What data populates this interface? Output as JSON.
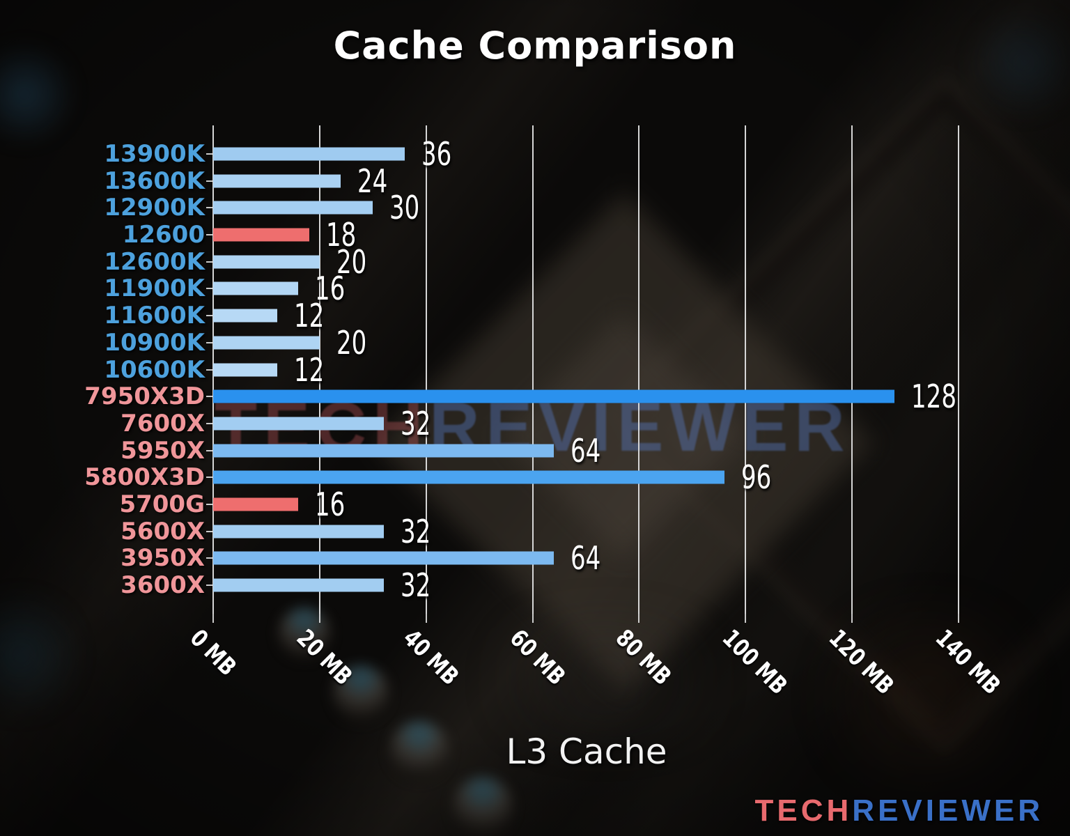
{
  "title": "Cache Comparison",
  "xlabel": "L3 Cache",
  "watermark_center": {
    "tech": "TECH",
    "reviewer": "REVIEWER",
    "tech_color": "rgba(205,95,100,0.34)",
    "reviewer_color": "rgba(90,128,210,0.38)"
  },
  "logo": {
    "tech": "TECH",
    "reviewer": "REVIEWER",
    "tech_color": "#e86a6e",
    "reviewer_color": "#3a70c8"
  },
  "chart_data": {
    "type": "bar",
    "orientation": "horizontal",
    "title": "Cache Comparison",
    "xlabel": "L3 Cache",
    "unit": "MB",
    "xlim": [
      0,
      140
    ],
    "grid": true,
    "grid_color": "#d6d6d6",
    "tick_values": [
      0,
      20,
      40,
      60,
      80,
      100,
      120,
      140
    ],
    "tick_labels": [
      "0 MB",
      "20 MB",
      "40 MB",
      "60 MB",
      "80 MB",
      "100 MB",
      "120 MB",
      "140 MB"
    ],
    "legend": null,
    "rows": [
      {
        "label": "13900K",
        "value": 36,
        "bar_color": "#9fcbf0",
        "label_color": "#4da1dd",
        "brand": "intel"
      },
      {
        "label": "13600K",
        "value": 24,
        "bar_color": "#aad1f2",
        "label_color": "#4da1dd",
        "brand": "intel"
      },
      {
        "label": "12900K",
        "value": 30,
        "bar_color": "#a4cef2",
        "label_color": "#4da1dd",
        "brand": "intel"
      },
      {
        "label": "12600",
        "value": 18,
        "bar_color": "#ee6e6e",
        "label_color": "#4da1dd",
        "brand": "intel"
      },
      {
        "label": "12600K",
        "value": 20,
        "bar_color": "#aed4f3",
        "label_color": "#4da1dd",
        "brand": "intel"
      },
      {
        "label": "11900K",
        "value": 16,
        "bar_color": "#b2d6f4",
        "label_color": "#4da1dd",
        "brand": "intel"
      },
      {
        "label": "11600K",
        "value": 12,
        "bar_color": "#b7d9f5",
        "label_color": "#4da1dd",
        "brand": "intel"
      },
      {
        "label": "10900K",
        "value": 20,
        "bar_color": "#aed4f3",
        "label_color": "#4da1dd",
        "brand": "intel"
      },
      {
        "label": "10600K",
        "value": 12,
        "bar_color": "#b7d9f5",
        "label_color": "#4da1dd",
        "brand": "intel"
      },
      {
        "label": "7950X3D",
        "value": 128,
        "bar_color": "#2a91ee",
        "label_color": "#f0969a",
        "brand": "amd"
      },
      {
        "label": "7600X",
        "value": 32,
        "bar_color": "#a2cdf1",
        "label_color": "#f0969a",
        "brand": "amd"
      },
      {
        "label": "5950X",
        "value": 64,
        "bar_color": "#7cb9f0",
        "label_color": "#f0969a",
        "brand": "amd"
      },
      {
        "label": "5800X3D",
        "value": 96,
        "bar_color": "#4ba4f0",
        "label_color": "#f0969a",
        "brand": "amd"
      },
      {
        "label": "5700G",
        "value": 16,
        "bar_color": "#ee6e6e",
        "label_color": "#f0969a",
        "brand": "amd"
      },
      {
        "label": "5600X",
        "value": 32,
        "bar_color": "#a2cdf1",
        "label_color": "#f0969a",
        "brand": "amd"
      },
      {
        "label": "3950X",
        "value": 64,
        "bar_color": "#7cb9f0",
        "label_color": "#f0969a",
        "brand": "amd"
      },
      {
        "label": "3600X",
        "value": 32,
        "bar_color": "#a2cdf1",
        "label_color": "#f0969a",
        "brand": "amd"
      }
    ]
  }
}
